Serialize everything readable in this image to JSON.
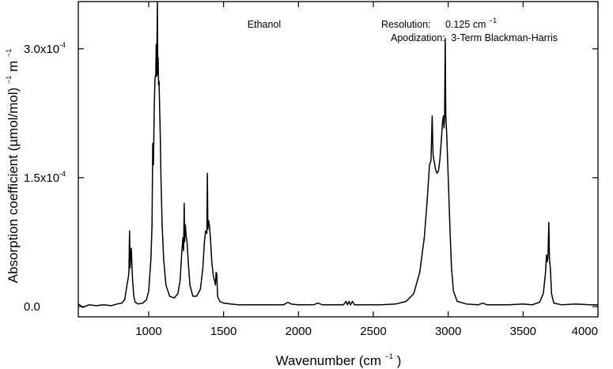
{
  "chart_data": {
    "type": "line",
    "title": "Ethanol",
    "annotations": {
      "resolution_label": "Resolution:",
      "resolution_value": "0.125 cm",
      "resolution_exp": "−1",
      "apodization_label": "Apodization:",
      "apodization_value": "3-Term Blackman-Harris"
    },
    "xlabel": {
      "prefix": "Wavenumber (cm",
      "exp": "−1",
      "suffix": ")"
    },
    "ylabel": {
      "prefix": "Absorption coefficient (µmol/mol)",
      "exp1": "−1",
      "middle": " m",
      "exp2": "−1"
    },
    "xlim": [
      530,
      4000
    ],
    "ylim": [
      -1.2e-05,
      0.000355
    ],
    "x_ticks": [
      {
        "value": 1000,
        "label": "1000"
      },
      {
        "value": 1500,
        "label": "1500"
      },
      {
        "value": 2000,
        "label": "2000"
      },
      {
        "value": 2500,
        "label": "2500"
      },
      {
        "value": 3000,
        "label": "3000"
      },
      {
        "value": 3500,
        "label": "3500"
      },
      {
        "value": 4000,
        "label": "4000"
      }
    ],
    "y_ticks": [
      {
        "value": 0,
        "label": "0.0"
      },
      {
        "value": 0.00015,
        "label": "1.5x10",
        "exp": "-4"
      },
      {
        "value": 0.0003,
        "label": "3.0x10",
        "exp": "-4"
      }
    ],
    "grid": false,
    "series": [
      {
        "color": "#000000",
        "points": [
          [
            530,
            3e-06
          ],
          [
            560,
            -1e-06
          ],
          [
            600,
            2e-06
          ],
          [
            650,
            1e-06
          ],
          [
            700,
            2e-06
          ],
          [
            750,
            1e-06
          ],
          [
            790,
            3e-06
          ],
          [
            820,
            4e-06
          ],
          [
            840,
            8e-06
          ],
          [
            855,
            2.5e-05
          ],
          [
            862,
            3.2e-05
          ],
          [
            868,
            4e-05
          ],
          [
            872,
            8.8e-05
          ],
          [
            876,
            4.5e-05
          ],
          [
            880,
            6e-05
          ],
          [
            884,
            6.8e-05
          ],
          [
            888,
            4.8e-05
          ],
          [
            893,
            3e-05
          ],
          [
            900,
            1.2e-05
          ],
          [
            910,
            5e-06
          ],
          [
            930,
            3e-06
          ],
          [
            960,
            4e-06
          ],
          [
            985,
            8e-06
          ],
          [
            1000,
            1.8e-05
          ],
          [
            1015,
            5.5e-05
          ],
          [
            1022,
            9.5e-05
          ],
          [
            1027,
            0.00019
          ],
          [
            1032,
            0.000165
          ],
          [
            1037,
            0.00023
          ],
          [
            1042,
            0.000265
          ],
          [
            1047,
            0.00027
          ],
          [
            1050,
            0.000305
          ],
          [
            1053,
            0.000268
          ],
          [
            1055,
            0.0003
          ],
          [
            1058,
            0.000355
          ],
          [
            1061,
            0.00027
          ],
          [
            1063,
            0.00029
          ],
          [
            1066,
            0.000258
          ],
          [
            1069,
            0.000262
          ],
          [
            1072,
            0.00024
          ],
          [
            1077,
            0.0002
          ],
          [
            1082,
            0.00015
          ],
          [
            1090,
            9.5e-05
          ],
          [
            1100,
            5.5e-05
          ],
          [
            1115,
            2.5e-05
          ],
          [
            1140,
            1.2e-05
          ],
          [
            1170,
            1e-05
          ],
          [
            1195,
            1.5e-05
          ],
          [
            1210,
            3e-05
          ],
          [
            1220,
            6e-05
          ],
          [
            1228,
            8e-05
          ],
          [
            1233,
            6.5e-05
          ],
          [
            1237,
            0.00012
          ],
          [
            1240,
            7.5e-05
          ],
          [
            1245,
            9.5e-05
          ],
          [
            1250,
            8.2e-05
          ],
          [
            1256,
            7.5e-05
          ],
          [
            1263,
            5.5e-05
          ],
          [
            1275,
            2.5e-05
          ],
          [
            1295,
            1.2e-05
          ],
          [
            1320,
            1.2e-05
          ],
          [
            1345,
            2e-05
          ],
          [
            1362,
            4.5e-05
          ],
          [
            1372,
            7.5e-05
          ],
          [
            1380,
            8.8e-05
          ],
          [
            1388,
            8.5e-05
          ],
          [
            1392,
            0.000155
          ],
          [
            1395,
            9e-05
          ],
          [
            1400,
            0.0001
          ],
          [
            1405,
            9.5e-05
          ],
          [
            1412,
            8e-05
          ],
          [
            1422,
            5e-05
          ],
          [
            1432,
            3.5e-05
          ],
          [
            1440,
            3e-05
          ],
          [
            1446,
            2.5e-05
          ],
          [
            1450,
            4e-05
          ],
          [
            1455,
            3.8e-05
          ],
          [
            1460,
            1.2e-05
          ],
          [
            1475,
            6e-06
          ],
          [
            1500,
            4e-06
          ],
          [
            1550,
            3e-06
          ],
          [
            1600,
            2e-06
          ],
          [
            1700,
            2e-06
          ],
          [
            1800,
            2e-06
          ],
          [
            1900,
            2e-06
          ],
          [
            1930,
            5e-06
          ],
          [
            1950,
            3e-06
          ],
          [
            2000,
            2e-06
          ],
          [
            2100,
            2e-06
          ],
          [
            2130,
            4e-06
          ],
          [
            2160,
            2e-06
          ],
          [
            2200,
            2e-06
          ],
          [
            2300,
            2e-06
          ],
          [
            2318,
            6e-06
          ],
          [
            2328,
            2e-06
          ],
          [
            2338,
            6e-06
          ],
          [
            2348,
            2e-06
          ],
          [
            2360,
            6e-06
          ],
          [
            2375,
            2e-06
          ],
          [
            2450,
            2e-06
          ],
          [
            2550,
            2e-06
          ],
          [
            2650,
            3e-06
          ],
          [
            2720,
            6e-06
          ],
          [
            2770,
            1.5e-05
          ],
          [
            2810,
            4e-05
          ],
          [
            2840,
            8e-05
          ],
          [
            2860,
            0.000125
          ],
          [
            2875,
            0.000165
          ],
          [
            2885,
            0.00017
          ],
          [
            2893,
            0.000222
          ],
          [
            2898,
            0.000178
          ],
          [
            2905,
            0.00017
          ],
          [
            2915,
            0.00016
          ],
          [
            2925,
            0.000155
          ],
          [
            2935,
            0.000158
          ],
          [
            2945,
            0.000172
          ],
          [
            2955,
            0.000195
          ],
          [
            2962,
            0.000215
          ],
          [
            2968,
            0.000222
          ],
          [
            2972,
            0.000208
          ],
          [
            2976,
            0.000222
          ],
          [
            2980,
            0.000312
          ],
          [
            2984,
            0.000222
          ],
          [
            2990,
            0.0002
          ],
          [
            3000,
            0.00015
          ],
          [
            3012,
            9e-05
          ],
          [
            3022,
            4.5e-05
          ],
          [
            3035,
            1.8e-05
          ],
          [
            3060,
            6e-06
          ],
          [
            3120,
            3e-06
          ],
          [
            3200,
            2e-06
          ],
          [
            3230,
            4e-06
          ],
          [
            3260,
            2e-06
          ],
          [
            3400,
            2e-06
          ],
          [
            3500,
            3e-06
          ],
          [
            3560,
            2e-06
          ],
          [
            3610,
            5e-06
          ],
          [
            3635,
            1.5e-05
          ],
          [
            3650,
            4e-05
          ],
          [
            3656,
            6e-05
          ],
          [
            3661,
            5.2e-05
          ],
          [
            3666,
            5.8e-05
          ],
          [
            3672,
            9.8e-05
          ],
          [
            3676,
            5.5e-05
          ],
          [
            3682,
            4.5e-05
          ],
          [
            3690,
            1.5e-05
          ],
          [
            3705,
            4e-06
          ],
          [
            3760,
            2e-06
          ],
          [
            3850,
            3e-06
          ],
          [
            3950,
            2e-06
          ],
          [
            4000,
            2e-06
          ]
        ]
      }
    ]
  }
}
